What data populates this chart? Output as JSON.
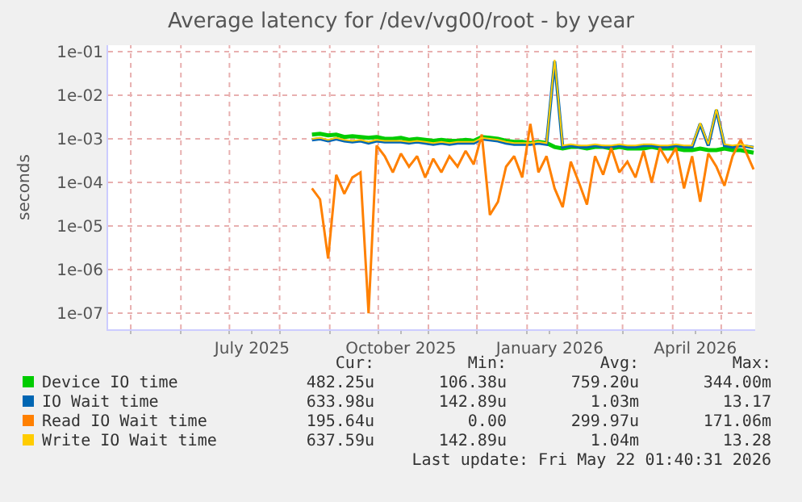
{
  "chart_data": {
    "type": "line",
    "title": "Average latency for /dev/vg00/root - by year",
    "ylabel": "seconds",
    "log": true,
    "grid": true,
    "legend": "bottom",
    "line_style": "solid",
    "marker": "none",
    "xlim": [
      "2025-04-17",
      "2026-05-22"
    ],
    "xticks": [
      {
        "value": "2025-05-01",
        "label": null
      },
      {
        "value": "2025-06-01",
        "label": null
      },
      {
        "value": "2025-07-01",
        "label": null
      },
      {
        "value": "2025-07-15",
        "label": "July 2025"
      },
      {
        "value": "2025-08-01",
        "label": null
      },
      {
        "value": "2025-09-01",
        "label": null
      },
      {
        "value": "2025-10-01",
        "label": null
      },
      {
        "value": "2025-10-15",
        "label": "October 2025"
      },
      {
        "value": "2025-11-01",
        "label": null
      },
      {
        "value": "2025-12-01",
        "label": null
      },
      {
        "value": "2026-01-01",
        "label": null
      },
      {
        "value": "2026-01-15",
        "label": "January 2026"
      },
      {
        "value": "2026-02-01",
        "label": null
      },
      {
        "value": "2026-03-01",
        "label": null
      },
      {
        "value": "2026-04-01",
        "label": null
      },
      {
        "value": "2026-04-15",
        "label": "April 2026"
      },
      {
        "value": "2026-05-01",
        "label": null
      }
    ],
    "ylim": [
      4.3e-08,
      0.14
    ],
    "yticks": [
      {
        "value": 1e-07,
        "label": "1e-07"
      },
      {
        "value": 1e-06,
        "label": "1e-06"
      },
      {
        "value": 1e-05,
        "label": "1e-05"
      },
      {
        "value": 0.0001,
        "label": "1e-04"
      },
      {
        "value": 0.001,
        "label": "1e-03"
      },
      {
        "value": 0.01,
        "label": "1e-02"
      },
      {
        "value": 0.1,
        "label": "1e-01"
      }
    ],
    "x": [
      "2025-08-21",
      "2025-08-26",
      "2025-08-31",
      "2025-09-05",
      "2025-09-10",
      "2025-09-15",
      "2025-09-20",
      "2025-09-25",
      "2025-09-30",
      "2025-10-05",
      "2025-10-10",
      "2025-10-15",
      "2025-10-20",
      "2025-10-25",
      "2025-10-30",
      "2025-11-04",
      "2025-11-09",
      "2025-11-14",
      "2025-11-19",
      "2025-11-24",
      "2025-11-29",
      "2025-12-04",
      "2025-12-09",
      "2025-12-14",
      "2025-12-19",
      "2025-12-24",
      "2025-12-29",
      "2026-01-03",
      "2026-01-08",
      "2026-01-13",
      "2026-01-18",
      "2026-01-23",
      "2026-01-28",
      "2026-02-02",
      "2026-02-07",
      "2026-02-12",
      "2026-02-17",
      "2026-02-22",
      "2026-02-27",
      "2026-03-04",
      "2026-03-09",
      "2026-03-14",
      "2026-03-19",
      "2026-03-24",
      "2026-03-29",
      "2026-04-03",
      "2026-04-08",
      "2026-04-13",
      "2026-04-18",
      "2026-04-23",
      "2026-04-28",
      "2026-05-03",
      "2026-05-08",
      "2026-05-13",
      "2026-05-21"
    ],
    "series": [
      {
        "name": "Device IO time",
        "color": "#00cc00",
        "values": [
          0.00125,
          0.0013,
          0.0012,
          0.00125,
          0.0011,
          0.00115,
          0.0011,
          0.00105,
          0.0011,
          0.001,
          0.001,
          0.00105,
          0.00095,
          0.001,
          0.00095,
          0.0009,
          0.00095,
          0.0009,
          0.0009,
          0.00095,
          0.0009,
          0.0011,
          0.00105,
          0.001,
          0.0009,
          0.00085,
          0.00085,
          0.0008,
          0.00085,
          0.0008,
          0.00065,
          0.0006,
          0.00065,
          0.00065,
          0.0006,
          0.00065,
          0.00065,
          0.0006,
          0.00065,
          0.0006,
          0.0006,
          0.0006,
          0.00065,
          0.0006,
          0.0006,
          0.0006,
          0.00055,
          0.00055,
          0.0006,
          0.00055,
          0.00055,
          0.0006,
          0.00055,
          0.00055,
          0.00048
        ]
      },
      {
        "name": "IO Wait time",
        "color": "#0066b3",
        "values": [
          0.00095,
          0.001,
          0.0009,
          0.001,
          0.0009,
          0.00085,
          0.0009,
          0.0008,
          0.0009,
          0.00085,
          0.00085,
          0.00085,
          0.0008,
          0.00085,
          0.0008,
          0.00075,
          0.0008,
          0.00075,
          0.0008,
          0.0008,
          0.0008,
          0.001,
          0.00095,
          0.0009,
          0.0008,
          0.00075,
          0.00075,
          0.00075,
          0.0008,
          0.00075,
          0.06,
          0.00065,
          0.0007,
          0.00065,
          0.00065,
          0.0007,
          0.00065,
          0.00065,
          0.0007,
          0.00065,
          0.00065,
          0.0007,
          0.0007,
          0.00065,
          0.00065,
          0.0007,
          0.00065,
          0.00065,
          0.0022,
          0.0007,
          0.0046,
          0.0007,
          0.00065,
          0.0007,
          0.00063
        ]
      },
      {
        "name": "Read IO Wait time",
        "color": "#ff8000",
        "values": [
          7.3e-05,
          4.1e-05,
          1.8e-06,
          0.00015,
          5.5e-05,
          0.00013,
          0.00017,
          1e-07,
          0.0007,
          0.0004,
          0.00017,
          0.00046,
          0.00023,
          0.0004,
          0.00013,
          0.00035,
          0.00017,
          0.0004,
          0.00023,
          0.00053,
          0.00026,
          0.00125,
          1.8e-05,
          3.6e-05,
          0.00023,
          0.0004,
          0.00013,
          0.0022,
          0.00017,
          0.0004,
          7.3e-05,
          2.7e-05,
          0.0003,
          0.0001,
          3.1e-05,
          0.0004,
          0.00015,
          0.00062,
          0.00017,
          0.0003,
          0.00013,
          0.00053,
          0.0001,
          0.00062,
          0.0003,
          0.00062,
          7.3e-05,
          0.0004,
          3.6e-05,
          0.00046,
          0.00023,
          8.4e-05,
          0.0004,
          0.00094,
          0.0002
        ]
      },
      {
        "name": "Write IO Wait time",
        "color": "#ffcc00",
        "values": [
          0.001,
          0.00105,
          0.00095,
          0.00105,
          0.00095,
          0.0009,
          0.00095,
          0.00085,
          0.00095,
          0.0009,
          0.0009,
          0.0009,
          0.00085,
          0.0009,
          0.00085,
          0.0008,
          0.00085,
          0.0008,
          0.00085,
          0.00085,
          0.00085,
          0.00105,
          0.001,
          0.00095,
          0.00085,
          0.0008,
          0.0008,
          0.0008,
          0.00085,
          0.0008,
          0.065,
          0.0007,
          0.00075,
          0.0007,
          0.0007,
          0.00075,
          0.0007,
          0.0007,
          0.00075,
          0.0007,
          0.0007,
          0.00075,
          0.00075,
          0.0007,
          0.0007,
          0.00075,
          0.0007,
          0.0007,
          0.0023,
          0.00075,
          0.0048,
          0.00075,
          0.0007,
          0.00075,
          0.00064
        ]
      }
    ],
    "annotations": [
      "Cur:",
      "Min:",
      "Avg:",
      "Max:",
      "482.25u",
      "106.38u",
      "759.20u",
      "344.00m",
      "633.98u",
      "142.89u",
      "1.03m",
      "13.17",
      "195.64u",
      "0.00",
      "299.97u",
      "171.06m",
      "637.59u",
      "142.89u",
      "1.04m",
      "13.28",
      "Last update: Fri May 22 01:40:31 2026"
    ]
  }
}
